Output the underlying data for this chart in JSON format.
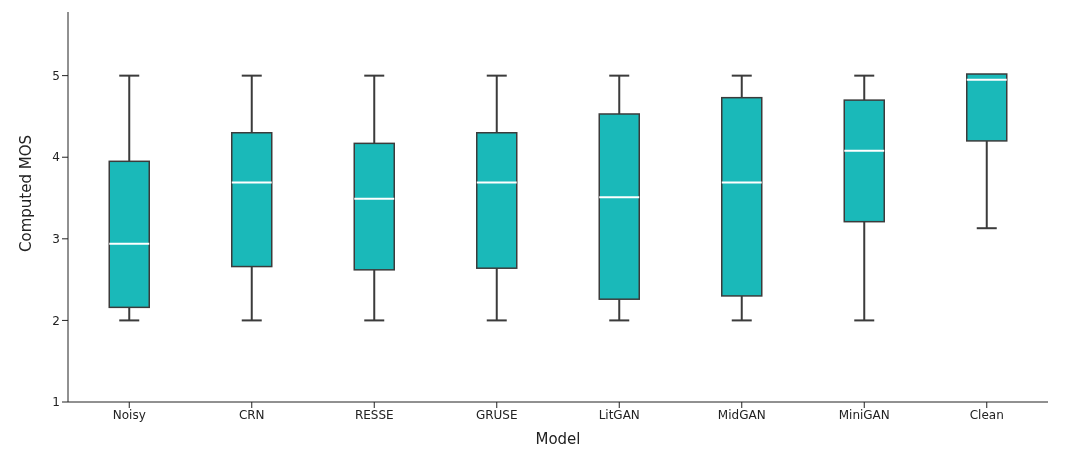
{
  "chart_data": {
    "type": "box",
    "xlabel": "Model",
    "ylabel": "Computed MOS",
    "categories": [
      "Noisy",
      "CRN",
      "RESSE",
      "GRUSE",
      "LitGAN",
      "MidGAN",
      "MiniGAN",
      "Clean"
    ],
    "color": "#1ab9b9",
    "ylim": [
      1,
      5.78
    ],
    "yticks": [
      1,
      2,
      3,
      4,
      5
    ],
    "boxes": [
      {
        "low": 2,
        "q1": 2.16,
        "median": 2.94,
        "q3": 3.95,
        "high": 5
      },
      {
        "low": 2,
        "q1": 2.66,
        "median": 3.69,
        "q3": 4.3,
        "high": 5
      },
      {
        "low": 2,
        "q1": 2.62,
        "median": 3.49,
        "q3": 4.17,
        "high": 5
      },
      {
        "low": 2,
        "q1": 2.64,
        "median": 3.69,
        "q3": 4.3,
        "high": 5
      },
      {
        "low": 2,
        "q1": 2.26,
        "median": 3.51,
        "q3": 4.53,
        "high": 5
      },
      {
        "low": 2,
        "q1": 2.3,
        "median": 3.69,
        "q3": 4.73,
        "high": 5
      },
      {
        "low": 2,
        "q1": 3.21,
        "median": 4.08,
        "q3": 4.7,
        "high": 5
      },
      {
        "low": 3.13,
        "q1": 4.2,
        "median": 4.95,
        "q3": 5.02,
        "high": 5
      }
    ]
  }
}
